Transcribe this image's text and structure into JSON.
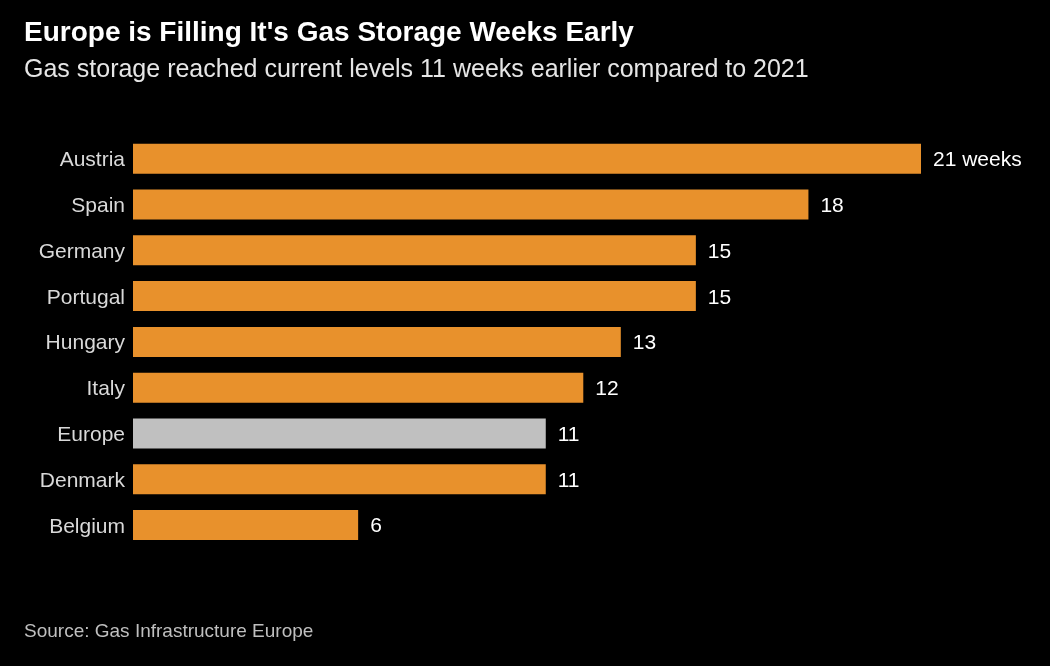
{
  "chart_data": {
    "type": "bar",
    "orientation": "horizontal",
    "title": "Europe is Filling It's Gas Storage Weeks Early",
    "subtitle": "Gas storage reached current levels 11 weeks earlier compared to 2021",
    "categories": [
      "Austria",
      "Spain",
      "Germany",
      "Portugal",
      "Hungary",
      "Italy",
      "Europe",
      "Denmark",
      "Belgium"
    ],
    "values": [
      21,
      18,
      15,
      15,
      13,
      12,
      11,
      11,
      6
    ],
    "colors": [
      "#e8912c",
      "#e8912c",
      "#e8912c",
      "#e8912c",
      "#e8912c",
      "#e8912c",
      "#c0c0c0",
      "#e8912c",
      "#e8912c"
    ],
    "value_labels": [
      "21 weeks",
      "18",
      "15",
      "15",
      "13",
      "12",
      "11",
      "11",
      "6"
    ],
    "annotations": [
      "Source: Gas Infrastructure Europe"
    ]
  }
}
